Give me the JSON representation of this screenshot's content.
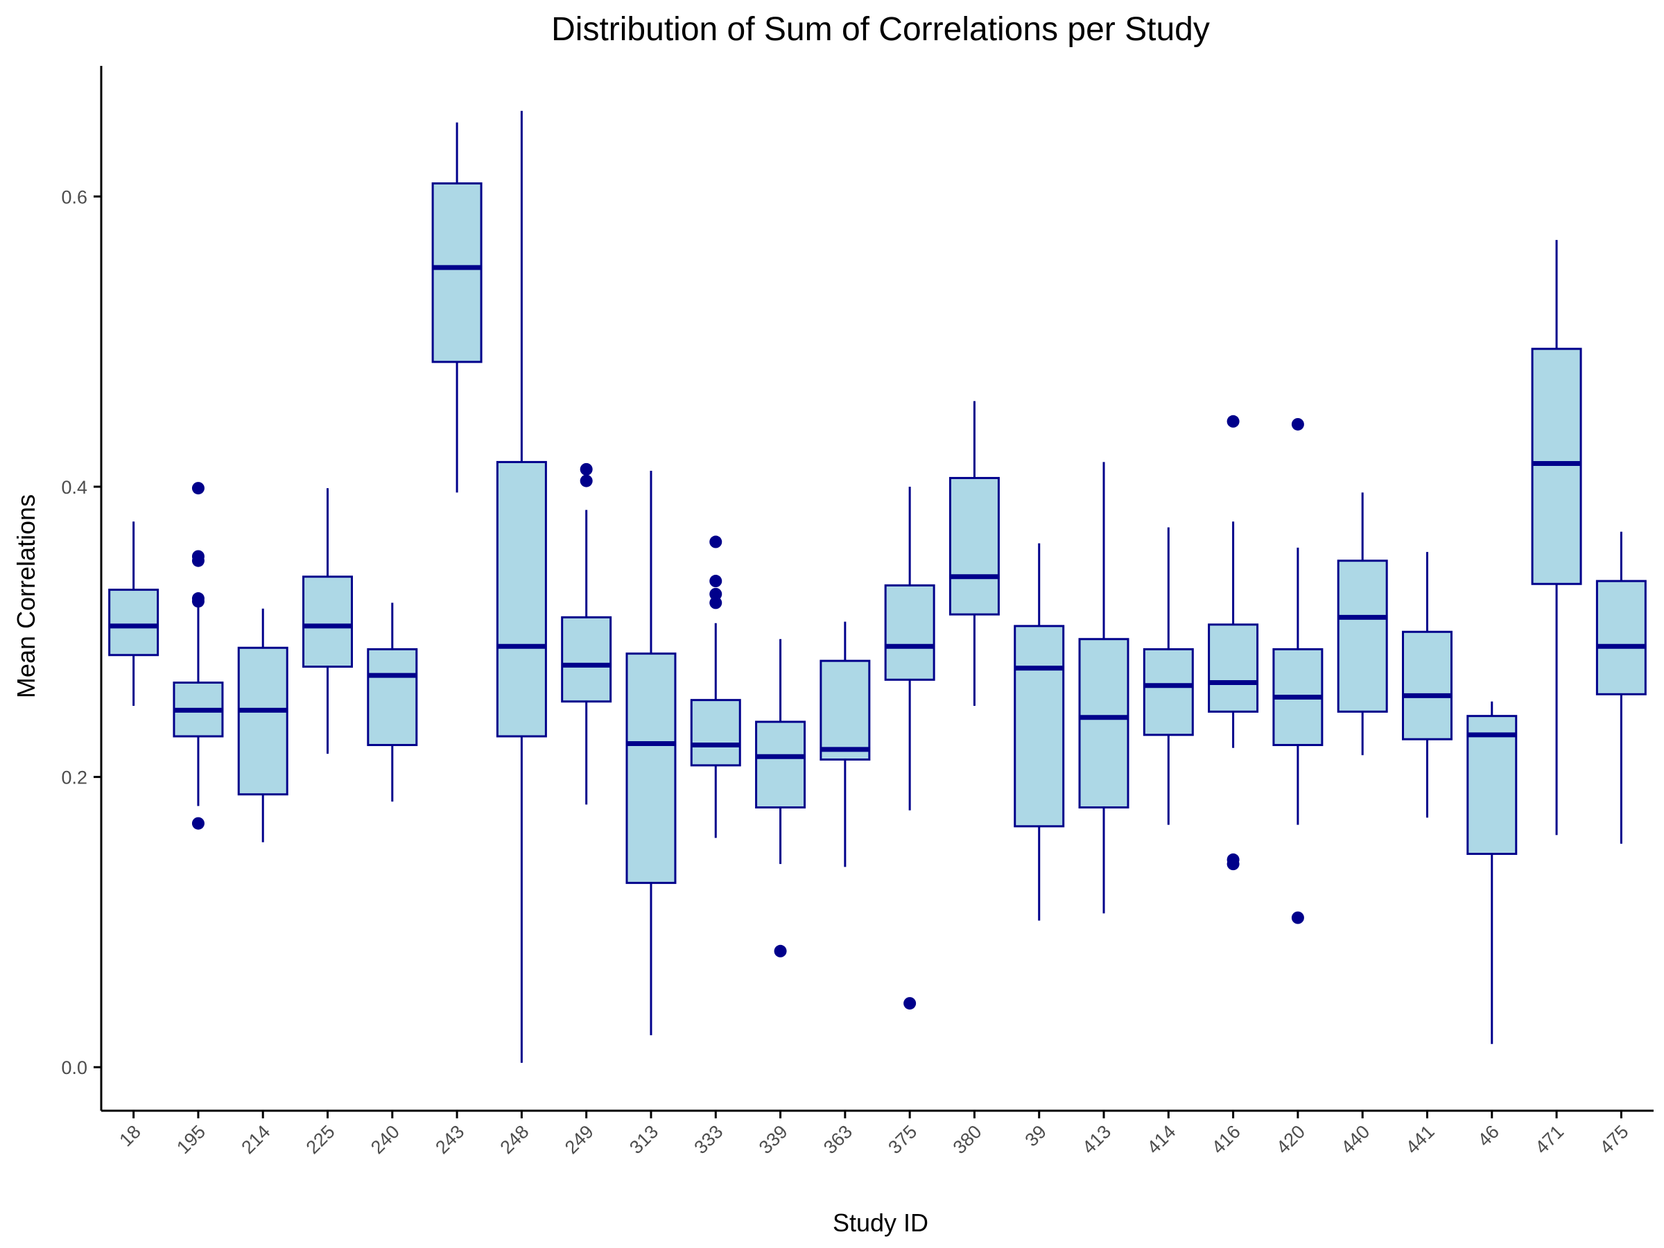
{
  "chart_data": {
    "type": "boxplot",
    "title": "Distribution of Sum of Correlations per Study",
    "xlabel": "Study ID",
    "ylabel": "Mean Correlations",
    "ylim": [
      -0.03,
      0.69
    ],
    "yticks": [
      0.0,
      0.2,
      0.4,
      0.6
    ],
    "ytick_labels": [
      "0.0",
      "0.2",
      "0.4",
      "0.6"
    ],
    "grid": false,
    "legend": "none",
    "colors": {
      "box_fill": "#add8e6",
      "box_stroke": "#00008b",
      "outlier": "#00008b",
      "axis": "#000000"
    },
    "categories": [
      "18",
      "195",
      "214",
      "225",
      "240",
      "243",
      "248",
      "249",
      "313",
      "333",
      "339",
      "363",
      "375",
      "380",
      "39",
      "413",
      "414",
      "416",
      "420",
      "440",
      "441",
      "46",
      "471",
      "475"
    ],
    "boxes": [
      {
        "id": "18",
        "whisker_low": 0.249,
        "q1": 0.284,
        "median": 0.304,
        "q3": 0.329,
        "whisker_high": 0.376,
        "outliers": []
      },
      {
        "id": "195",
        "whisker_low": 0.18,
        "q1": 0.228,
        "median": 0.246,
        "q3": 0.265,
        "whisker_high": 0.318,
        "outliers": [
          0.168,
          0.321,
          0.323,
          0.349,
          0.352,
          0.399
        ]
      },
      {
        "id": "214",
        "whisker_low": 0.155,
        "q1": 0.188,
        "median": 0.246,
        "q3": 0.289,
        "whisker_high": 0.316,
        "outliers": []
      },
      {
        "id": "225",
        "whisker_low": 0.216,
        "q1": 0.276,
        "median": 0.304,
        "q3": 0.338,
        "whisker_high": 0.399,
        "outliers": []
      },
      {
        "id": "240",
        "whisker_low": 0.183,
        "q1": 0.222,
        "median": 0.27,
        "q3": 0.288,
        "whisker_high": 0.32,
        "outliers": []
      },
      {
        "id": "243",
        "whisker_low": 0.396,
        "q1": 0.486,
        "median": 0.551,
        "q3": 0.609,
        "whisker_high": 0.651,
        "outliers": []
      },
      {
        "id": "248",
        "whisker_low": 0.003,
        "q1": 0.228,
        "median": 0.29,
        "q3": 0.417,
        "whisker_high": 0.659,
        "outliers": []
      },
      {
        "id": "249",
        "whisker_low": 0.181,
        "q1": 0.252,
        "median": 0.277,
        "q3": 0.31,
        "whisker_high": 0.384,
        "outliers": [
          0.404,
          0.412
        ]
      },
      {
        "id": "313",
        "whisker_low": 0.022,
        "q1": 0.127,
        "median": 0.223,
        "q3": 0.285,
        "whisker_high": 0.411,
        "outliers": []
      },
      {
        "id": "333",
        "whisker_low": 0.158,
        "q1": 0.208,
        "median": 0.222,
        "q3": 0.253,
        "whisker_high": 0.306,
        "outliers": [
          0.32,
          0.326,
          0.335,
          0.362
        ]
      },
      {
        "id": "339",
        "whisker_low": 0.14,
        "q1": 0.179,
        "median": 0.214,
        "q3": 0.238,
        "whisker_high": 0.295,
        "outliers": [
          0.08
        ]
      },
      {
        "id": "363",
        "whisker_low": 0.138,
        "q1": 0.212,
        "median": 0.219,
        "q3": 0.28,
        "whisker_high": 0.307,
        "outliers": []
      },
      {
        "id": "375",
        "whisker_low": 0.177,
        "q1": 0.267,
        "median": 0.29,
        "q3": 0.332,
        "whisker_high": 0.4,
        "outliers": [
          0.044
        ]
      },
      {
        "id": "380",
        "whisker_low": 0.249,
        "q1": 0.312,
        "median": 0.338,
        "q3": 0.406,
        "whisker_high": 0.459,
        "outliers": []
      },
      {
        "id": "39",
        "whisker_low": 0.101,
        "q1": 0.166,
        "median": 0.275,
        "q3": 0.304,
        "whisker_high": 0.361,
        "outliers": []
      },
      {
        "id": "413",
        "whisker_low": 0.106,
        "q1": 0.179,
        "median": 0.241,
        "q3": 0.295,
        "whisker_high": 0.417,
        "outliers": []
      },
      {
        "id": "414",
        "whisker_low": 0.167,
        "q1": 0.229,
        "median": 0.263,
        "q3": 0.288,
        "whisker_high": 0.372,
        "outliers": []
      },
      {
        "id": "416",
        "whisker_low": 0.22,
        "q1": 0.245,
        "median": 0.265,
        "q3": 0.305,
        "whisker_high": 0.376,
        "outliers": [
          0.14,
          0.143,
          0.445
        ]
      },
      {
        "id": "420",
        "whisker_low": 0.167,
        "q1": 0.222,
        "median": 0.255,
        "q3": 0.288,
        "whisker_high": 0.358,
        "outliers": [
          0.103,
          0.443
        ]
      },
      {
        "id": "440",
        "whisker_low": 0.215,
        "q1": 0.245,
        "median": 0.31,
        "q3": 0.349,
        "whisker_high": 0.396,
        "outliers": []
      },
      {
        "id": "441",
        "whisker_low": 0.172,
        "q1": 0.226,
        "median": 0.256,
        "q3": 0.3,
        "whisker_high": 0.355,
        "outliers": []
      },
      {
        "id": "46",
        "whisker_low": 0.016,
        "q1": 0.147,
        "median": 0.229,
        "q3": 0.242,
        "whisker_high": 0.252,
        "outliers": []
      },
      {
        "id": "471",
        "whisker_low": 0.16,
        "q1": 0.333,
        "median": 0.416,
        "q3": 0.495,
        "whisker_high": 0.57,
        "outliers": []
      },
      {
        "id": "475",
        "whisker_low": 0.154,
        "q1": 0.257,
        "median": 0.29,
        "q3": 0.335,
        "whisker_high": 0.369,
        "outliers": []
      }
    ]
  }
}
